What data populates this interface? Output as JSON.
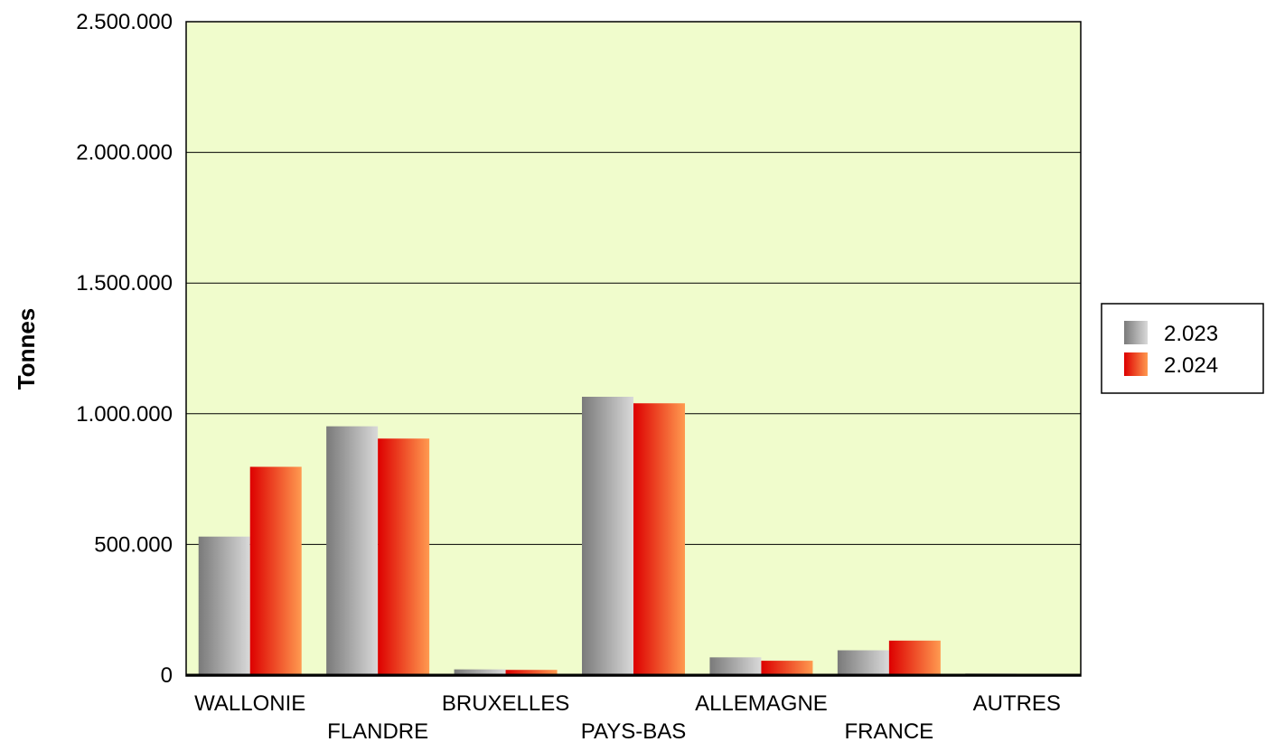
{
  "chart_data": {
    "type": "bar",
    "ylabel": "Tonnes",
    "categories": [
      "WALLONIE",
      "FLANDRE",
      "BRUXELLES",
      "PAYS-BAS",
      "ALLEMAGNE",
      "FRANCE",
      "AUTRES"
    ],
    "series": [
      {
        "name": "2.023",
        "values": [
          530000,
          952000,
          22000,
          1065000,
          68000,
          95000,
          6000
        ]
      },
      {
        "name": "2.024",
        "values": [
          797000,
          905000,
          20000,
          1040000,
          55000,
          132000,
          3000
        ]
      }
    ],
    "yticks": [
      {
        "value": 0,
        "label": "0"
      },
      {
        "value": 500000,
        "label": "500.000"
      },
      {
        "value": 1000000,
        "label": "1.000.000"
      },
      {
        "value": 1500000,
        "label": "1.500.000"
      },
      {
        "value": 2000000,
        "label": "2.000.000"
      },
      {
        "value": 2500000,
        "label": "2.500.000"
      }
    ],
    "ylim": [
      0,
      2500000
    ],
    "grid": true,
    "legend_position": "right",
    "colors": {
      "plot_background": "#f0fccc",
      "series_2023_dark": "#7a7a7a",
      "series_2023_light": "#d9d9d9",
      "series_2024_dark": "#dd0000",
      "series_2024_light": "#ff9a50"
    }
  }
}
